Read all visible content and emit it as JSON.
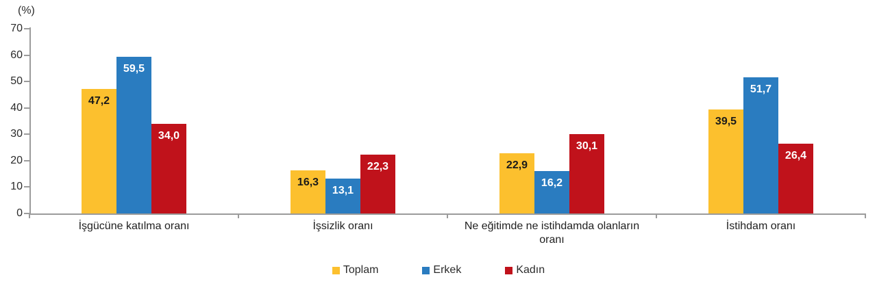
{
  "chart_data": {
    "type": "bar",
    "title": "",
    "unit_label": "(%)",
    "categories": [
      "İşgücüne katılma oranı",
      "İşsizlik oranı",
      "Ne eğitimde ne istihdamda olanların oranı",
      "İstihdam oranı"
    ],
    "series": [
      {
        "name": "Toplam",
        "color": "#FCC02E",
        "label_color": "#1a1a1a",
        "values": [
          47.2,
          16.3,
          22.9,
          39.5
        ],
        "display_labels": [
          "47,2",
          "16,3",
          "22,9",
          "39,5"
        ]
      },
      {
        "name": "Erkek",
        "color": "#2A7CC0",
        "label_color": "#ffffff",
        "values": [
          59.5,
          13.1,
          16.2,
          51.7
        ],
        "display_labels": [
          "59,5",
          "13,1",
          "16,2",
          "51,7"
        ]
      },
      {
        "name": "Kadın",
        "color": "#C0121B",
        "label_color": "#ffffff",
        "values": [
          34.0,
          22.3,
          30.1,
          26.4
        ],
        "display_labels": [
          "34,0",
          "22,3",
          "30,1",
          "26,4"
        ]
      }
    ],
    "ylim": [
      0,
      70
    ],
    "ytick_step": 10,
    "ytick_labels": [
      "0",
      "10",
      "20",
      "30",
      "40",
      "50",
      "60",
      "70"
    ],
    "grid": false,
    "legend_position": "bottom",
    "legend": [
      "Toplam",
      "Erkek",
      "Kadın"
    ],
    "axis_color": "#9b9b9b"
  }
}
